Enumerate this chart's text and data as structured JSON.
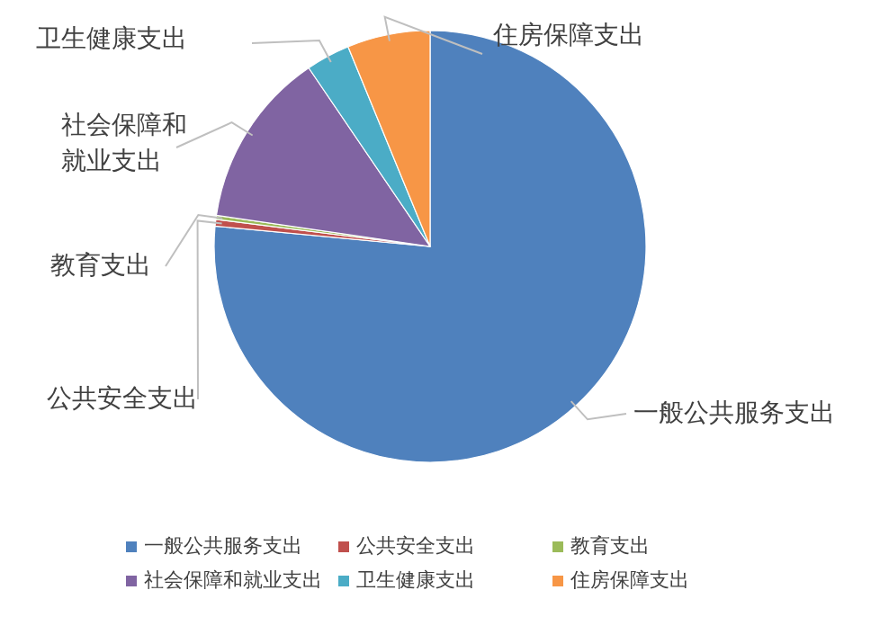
{
  "chart_data": {
    "type": "pie",
    "categories": [
      "一般公共服务支出",
      "公共安全支出",
      "教育支出",
      "社会保障和就业支出",
      "卫生健康支出",
      "住房保障支出"
    ],
    "values": [
      76.5,
      0.5,
      0.3,
      13.2,
      3.3,
      6.2
    ],
    "colors": [
      "#4f81bd",
      "#c0504d",
      "#9bbb59",
      "#8064a2",
      "#4bacc6",
      "#f79646"
    ],
    "legend": "bottom"
  }
}
